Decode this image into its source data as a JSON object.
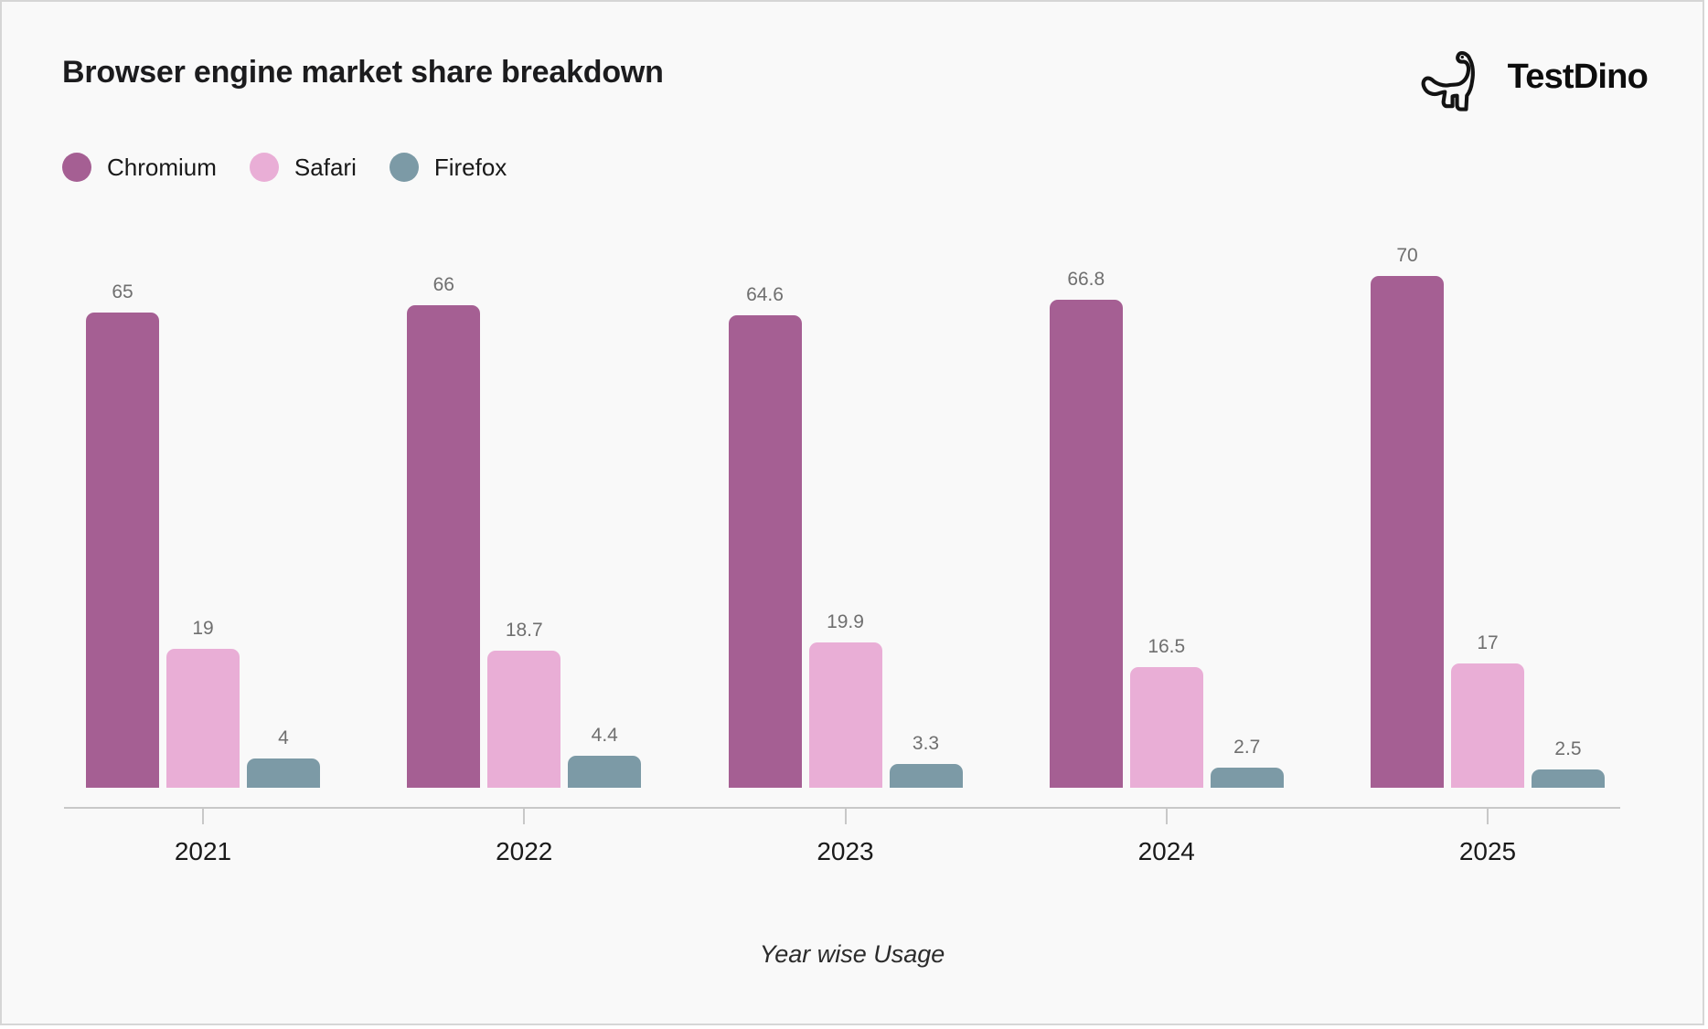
{
  "page": {
    "title": "Browser engine market share breakdown",
    "caption": "Year wise Usage"
  },
  "brand": {
    "name": "TestDino",
    "icon": "dino-icon"
  },
  "legend": {
    "items": [
      {
        "label": "Chromium",
        "color": "#a55f93"
      },
      {
        "label": "Safari",
        "color": "#e9aed6"
      },
      {
        "label": "Firefox",
        "color": "#7c9aa6"
      }
    ]
  },
  "chart_data": {
    "type": "bar",
    "title": "Browser engine market share breakdown",
    "xlabel": "Year wise Usage",
    "ylabel": "",
    "categories": [
      "2021",
      "2022",
      "2023",
      "2024",
      "2025"
    ],
    "series": [
      {
        "name": "Chromium",
        "color": "#a55f93",
        "values": [
          65,
          66,
          64.6,
          66.8,
          70
        ]
      },
      {
        "name": "Safari",
        "color": "#e9aed6",
        "values": [
          19,
          18.7,
          19.9,
          16.5,
          17
        ]
      },
      {
        "name": "Firefox",
        "color": "#7c9aa6",
        "values": [
          4,
          4.4,
          3.3,
          2.7,
          2.5
        ]
      }
    ],
    "ylim": [
      0,
      70
    ],
    "value_labels": true,
    "grid": false,
    "legend_position": "top-left",
    "axis_color": "#c8c8c8",
    "value_label_color": "#6f6f6f",
    "background_color": "#f9f9f9"
  }
}
